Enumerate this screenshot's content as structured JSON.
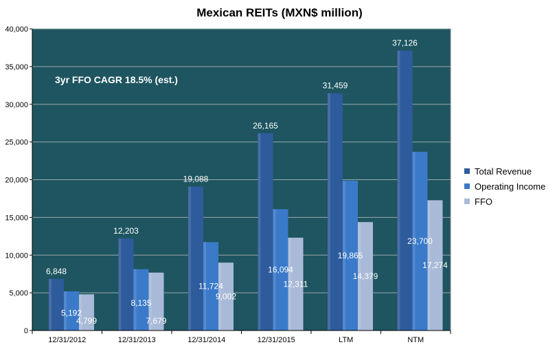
{
  "chart_data": {
    "type": "bar",
    "title": "Mexican REITs (MXN$ million)",
    "annotation": "3yr FFO CAGR 18.5% (est.)",
    "categories": [
      "12/31/2012",
      "12/31/2013",
      "12/31/2014",
      "12/31/2015",
      "LTM",
      "NTM"
    ],
    "series": [
      {
        "name": "Total Revenue",
        "values": [
          6848,
          12203,
          19088,
          26165,
          31459,
          37126
        ],
        "labels": [
          "6,848",
          "12,203",
          "19,088",
          "26,165",
          "31,459",
          "37,126"
        ],
        "color": "#2e5b9c"
      },
      {
        "name": "Operating Income",
        "values": [
          5192,
          8135,
          11724,
          16094,
          19865,
          23700
        ],
        "labels": [
          "5,192",
          "8,135",
          "11,724",
          "16,094",
          "19,865",
          "23,700"
        ],
        "color": "#3a7ac9"
      },
      {
        "name": "FFO",
        "values": [
          4799,
          7679,
          9002,
          12311,
          14379,
          17274
        ],
        "labels": [
          "4,799",
          "7,679",
          "9,002",
          "12,311",
          "14,379",
          "17,274"
        ],
        "color": "#a9bad8"
      }
    ],
    "ylim": [
      0,
      40000
    ],
    "ytick_labels": [
      "0",
      "5,000",
      "10,000",
      "15,000",
      "20,000",
      "25,000",
      "30,000",
      "35,000",
      "40,000"
    ],
    "grid": true,
    "legend_position": "right",
    "plot_background": "#1e5560"
  }
}
